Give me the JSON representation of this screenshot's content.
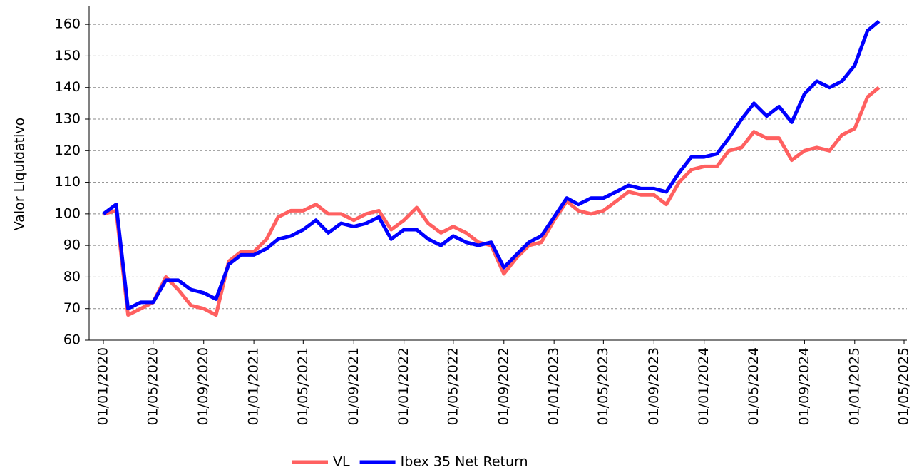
{
  "chart_data": {
    "type": "line",
    "y_label": "Valor Liquidativo",
    "x": [
      "01/01/2020",
      "01/02/2020",
      "01/03/2020",
      "01/04/2020",
      "01/05/2020",
      "01/06/2020",
      "01/07/2020",
      "01/08/2020",
      "01/09/2020",
      "01/10/2020",
      "01/11/2020",
      "01/12/2020",
      "01/01/2021",
      "01/02/2021",
      "01/03/2021",
      "01/04/2021",
      "01/05/2021",
      "01/06/2021",
      "01/07/2021",
      "01/08/2021",
      "01/09/2021",
      "01/10/2021",
      "01/11/2021",
      "01/12/2021",
      "01/01/2022",
      "01/02/2022",
      "01/03/2022",
      "01/04/2022",
      "01/05/2022",
      "01/06/2022",
      "01/07/2022",
      "01/08/2022",
      "01/09/2022",
      "01/10/2022",
      "01/11/2022",
      "01/12/2022",
      "01/01/2023",
      "01/02/2023",
      "01/03/2023",
      "01/04/2023",
      "01/05/2023",
      "01/06/2023",
      "01/07/2023",
      "01/08/2023",
      "01/09/2023",
      "01/10/2023",
      "01/11/2023",
      "01/12/2023",
      "01/01/2024",
      "01/02/2024",
      "01/03/2024",
      "01/04/2024",
      "01/05/2024",
      "01/06/2024",
      "01/07/2024",
      "01/08/2024",
      "01/09/2024",
      "01/10/2024",
      "01/11/2024",
      "01/12/2024",
      "01/01/2025",
      "01/02/2025",
      "01/03/2025"
    ],
    "series": [
      {
        "name": "VL",
        "color": "#ff6060",
        "values": [
          100,
          101,
          68,
          70,
          72,
          80,
          76,
          71,
          70,
          68,
          85,
          88,
          88,
          92,
          99,
          101,
          101,
          103,
          100,
          100,
          98,
          100,
          101,
          95,
          98,
          102,
          97,
          94,
          96,
          94,
          91,
          90,
          81,
          86,
          90,
          91,
          98,
          104,
          101,
          100,
          101,
          104,
          107,
          106,
          106,
          103,
          110,
          114,
          115,
          115,
          120,
          121,
          126,
          124,
          124,
          117,
          120,
          121,
          120,
          125,
          127,
          137,
          140
        ]
      },
      {
        "name": "Ibex 35 Net Return",
        "color": "#0000ff",
        "values": [
          100,
          103,
          70,
          72,
          72,
          79,
          79,
          76,
          75,
          73,
          84,
          87,
          87,
          89,
          92,
          93,
          95,
          98,
          94,
          97,
          96,
          97,
          99,
          92,
          95,
          95,
          92,
          90,
          93,
          91,
          90,
          91,
          83,
          87,
          91,
          93,
          99,
          105,
          103,
          105,
          105,
          107,
          109,
          108,
          108,
          107,
          113,
          118,
          118,
          119,
          124,
          130,
          135,
          131,
          134,
          129,
          138,
          142,
          140,
          142,
          147,
          158,
          161
        ]
      }
    ],
    "xlim": [
      "01/01/2020",
      "01/05/2025"
    ],
    "xticks": [
      "01/01/2020",
      "01/05/2020",
      "01/09/2020",
      "01/01/2021",
      "01/05/2021",
      "01/09/2021",
      "01/01/2022",
      "01/05/2022",
      "01/09/2022",
      "01/01/2023",
      "01/05/2023",
      "01/09/2023",
      "01/01/2024",
      "01/05/2024",
      "01/09/2024",
      "01/01/2025",
      "01/05/2025"
    ],
    "ylim": [
      60,
      165
    ],
    "yticks": [
      60,
      70,
      80,
      90,
      100,
      110,
      120,
      130,
      140,
      150,
      160
    ],
    "grid": true
  }
}
